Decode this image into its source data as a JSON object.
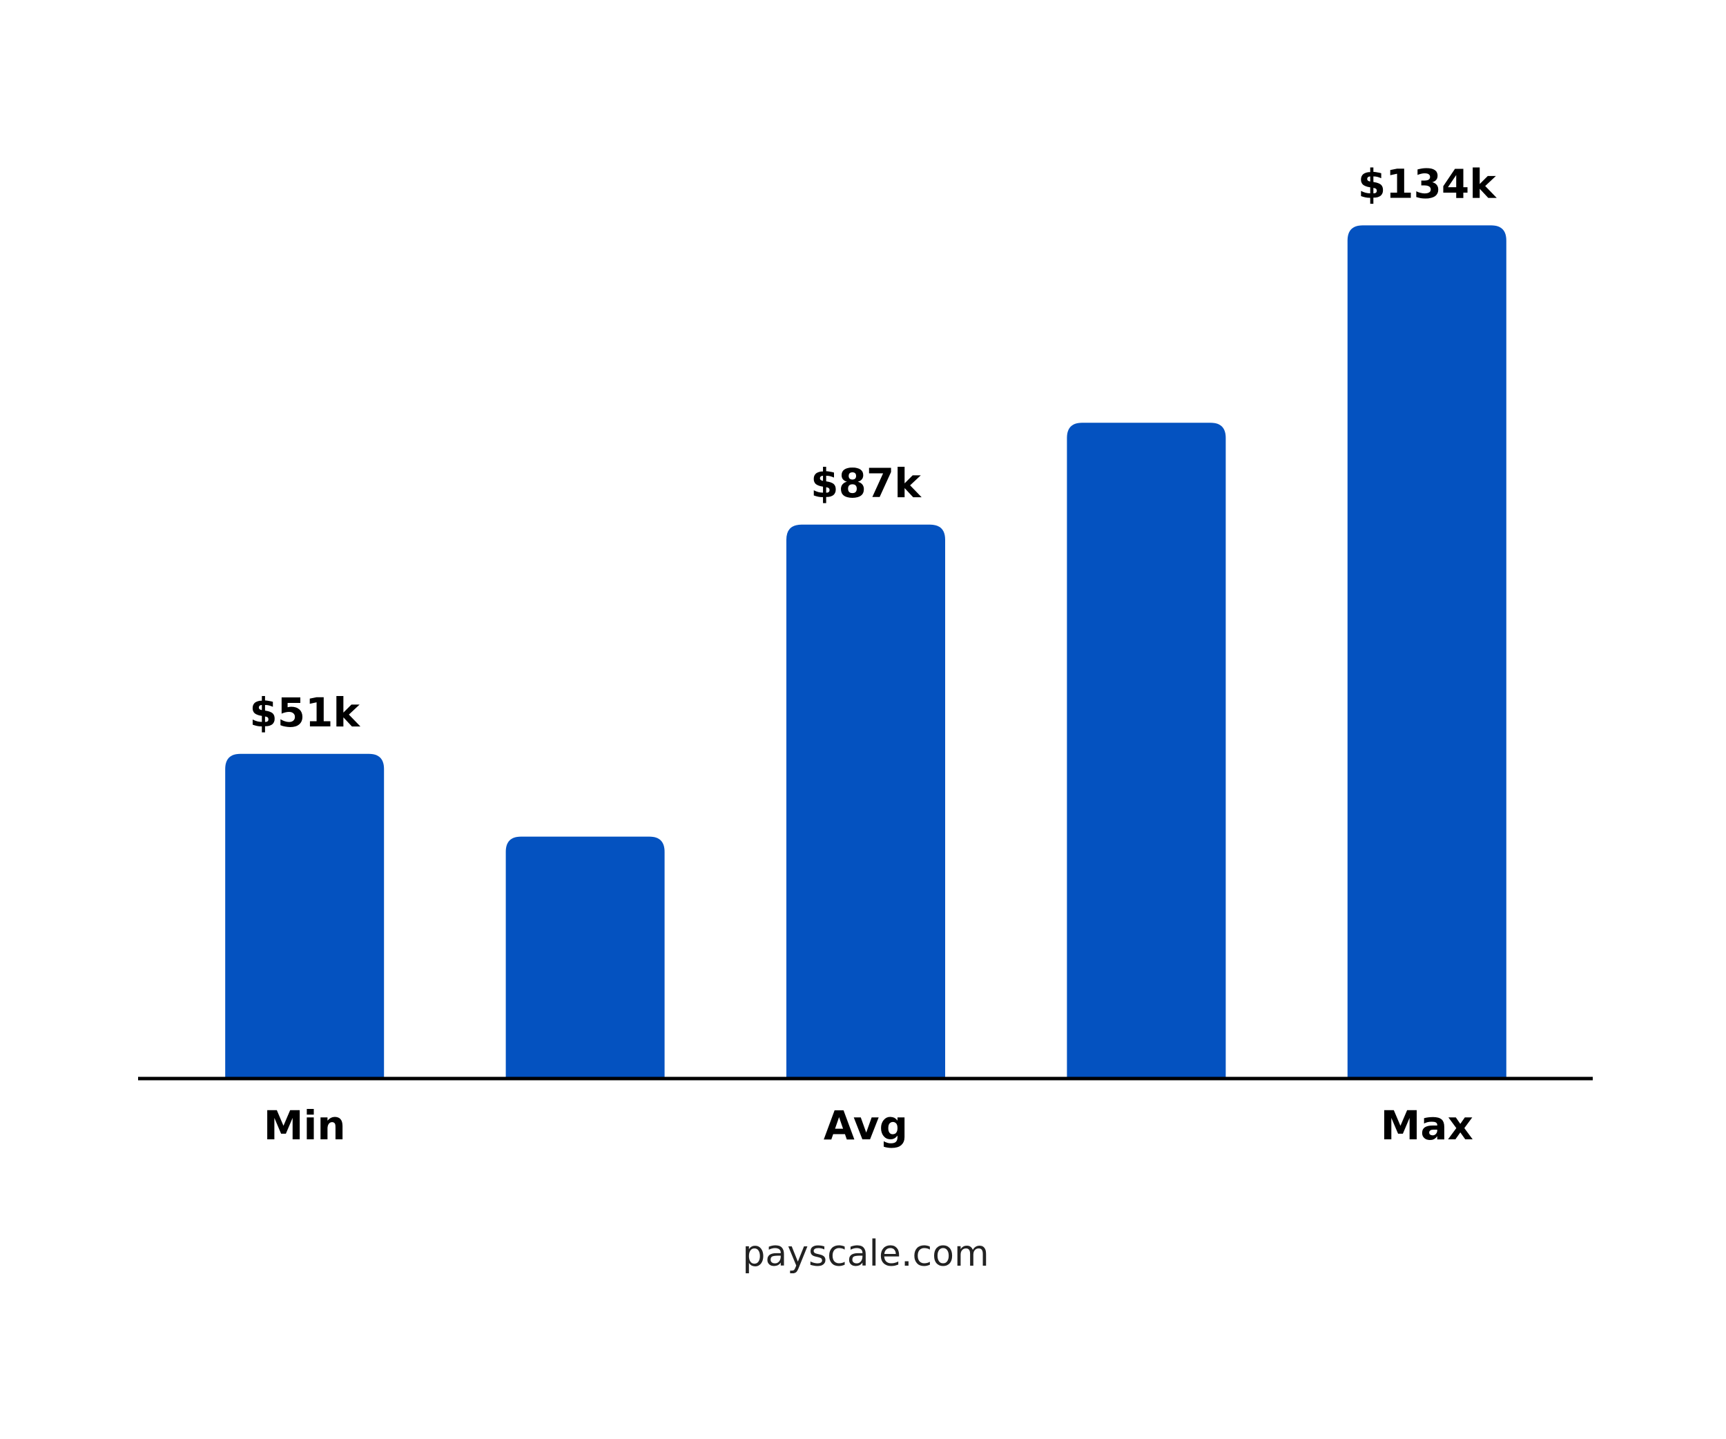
{
  "chart_data": {
    "type": "bar",
    "categories": [
      "Min",
      null,
      "Avg",
      null,
      "Max"
    ],
    "values": [
      51000,
      38000,
      87000,
      103000,
      134000
    ],
    "value_labels": [
      "$51k",
      null,
      "$87k",
      null,
      "$134k"
    ],
    "color": "#0452c0",
    "ylim": [
      0,
      140000
    ],
    "source": "payscale.com"
  }
}
